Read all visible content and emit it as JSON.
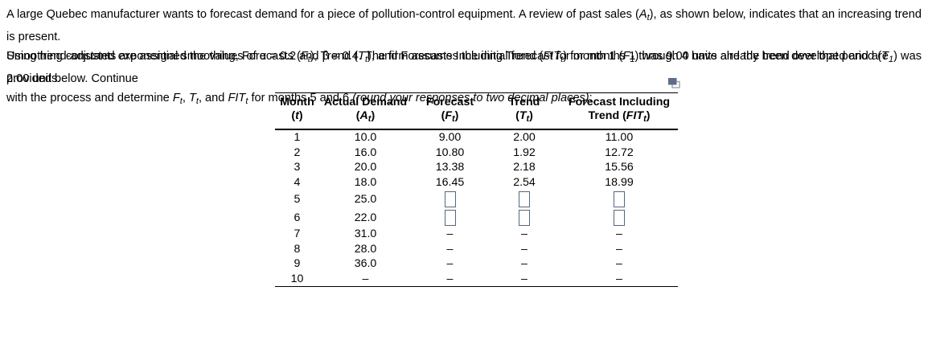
{
  "intro": {
    "segments": [
      {
        "t": "A large Quebec manufacturer wants to forecast demand for a piece of pollution-control equipment. A review of past sales ("
      },
      {
        "t": "A",
        "s": "i"
      },
      {
        "t": "t",
        "s": "is"
      },
      {
        "t": "), as shown below, indicates that an increasing trend is present."
      },
      {
        "br": true
      },
      {
        "t": "Smoothing constants are assigned the values of α = 0.2 and β = 0.4. The firm assumes the initial forecast for month 1 ("
      },
      {
        "t": "F",
        "s": "i"
      },
      {
        "t": "1",
        "s": "is"
      },
      {
        "t": ") was 9.00 units and the trend over that period ("
      },
      {
        "t": "T",
        "s": "i"
      },
      {
        "t": "1",
        "s": "is"
      },
      {
        "t": ") was 2.00 units."
      }
    ]
  },
  "instructions": {
    "segments": [
      {
        "t": "Using trend-adjusted exponential smoothing, Forecasts ("
      },
      {
        "t": "F",
        "s": "i"
      },
      {
        "t": "t",
        "s": "is"
      },
      {
        "t": "), Trend ("
      },
      {
        "t": "T",
        "s": "i"
      },
      {
        "t": "t",
        "s": "is"
      },
      {
        "t": "), and Forecasts Including Trend ("
      },
      {
        "t": "FIT",
        "s": "i"
      },
      {
        "t": "t",
        "s": "is"
      },
      {
        "t": ") for months 1 through 4 have already been developed and are provided below. Continue"
      },
      {
        "br": true
      },
      {
        "t": "with the process and determine "
      },
      {
        "t": "F",
        "s": "i"
      },
      {
        "t": "t",
        "s": "is"
      },
      {
        "t": ", "
      },
      {
        "t": "T",
        "s": "i"
      },
      {
        "t": "t",
        "s": "is"
      },
      {
        "t": ", and "
      },
      {
        "t": "FIT",
        "s": "i"
      },
      {
        "t": "t",
        "s": "is"
      },
      {
        "t": " for months 5 and 6 "
      },
      {
        "t": "(round your responses to two decimal places)",
        "s": "i"
      },
      {
        "t": ":"
      }
    ]
  },
  "icons": {
    "popup": "open-in-new-window-icon"
  },
  "colors": {
    "input_border": "#53687f",
    "icon_front": "#5d6e87",
    "icon_back": "#9aa2ae",
    "table_line": "#000000"
  },
  "table": {
    "headers": [
      {
        "segments": [
          {
            "t": "Month"
          },
          {
            "br": true
          },
          {
            "t": "("
          },
          {
            "t": "t",
            "s": "i"
          },
          {
            "t": ")"
          }
        ]
      },
      {
        "segments": [
          {
            "t": "Actual Demand"
          },
          {
            "br": true
          },
          {
            "t": "("
          },
          {
            "t": "A",
            "s": "i"
          },
          {
            "t": "t",
            "s": "is"
          },
          {
            "t": ")"
          }
        ]
      },
      {
        "segments": [
          {
            "t": "Forecast"
          },
          {
            "br": true
          },
          {
            "t": "("
          },
          {
            "t": "F",
            "s": "i"
          },
          {
            "t": "t",
            "s": "is"
          },
          {
            "t": ")"
          }
        ]
      },
      {
        "segments": [
          {
            "t": "Trend"
          },
          {
            "br": true
          },
          {
            "t": "("
          },
          {
            "t": "T",
            "s": "i"
          },
          {
            "t": "t",
            "s": "is"
          },
          {
            "t": ")"
          }
        ]
      },
      {
        "segments": [
          {
            "t": "Forecast Including"
          },
          {
            "br": true
          },
          {
            "t": "Trend ("
          },
          {
            "t": "FIT",
            "s": "i"
          },
          {
            "t": "t",
            "s": "is"
          },
          {
            "t": ")"
          }
        ]
      }
    ],
    "rows": [
      {
        "month": "1",
        "actual": "10.0",
        "forecast": "9.00",
        "trend": "2.00",
        "fit": "11.00",
        "answer_cells": "value"
      },
      {
        "month": "2",
        "actual": "16.0",
        "forecast": "10.80",
        "trend": "1.92",
        "fit": "12.72",
        "answer_cells": "value"
      },
      {
        "month": "3",
        "actual": "20.0",
        "forecast": "13.38",
        "trend": "2.18",
        "fit": "15.56",
        "answer_cells": "value"
      },
      {
        "month": "4",
        "actual": "18.0",
        "forecast": "16.45",
        "trend": "2.54",
        "fit": "18.99",
        "answer_cells": "value"
      },
      {
        "month": "5",
        "actual": "25.0",
        "forecast": "",
        "trend": "",
        "fit": "",
        "answer_cells": "input"
      },
      {
        "month": "6",
        "actual": "22.0",
        "forecast": "",
        "trend": "",
        "fit": "",
        "answer_cells": "input"
      },
      {
        "month": "7",
        "actual": "31.0",
        "forecast": "–",
        "trend": "–",
        "fit": "–",
        "answer_cells": "value"
      },
      {
        "month": "8",
        "actual": "28.0",
        "forecast": "–",
        "trend": "–",
        "fit": "–",
        "answer_cells": "value"
      },
      {
        "month": "9",
        "actual": "36.0",
        "forecast": "–",
        "trend": "–",
        "fit": "–",
        "answer_cells": "value"
      },
      {
        "month": "10",
        "actual": "–",
        "forecast": "–",
        "trend": "–",
        "fit": "–",
        "answer_cells": "value"
      }
    ]
  }
}
